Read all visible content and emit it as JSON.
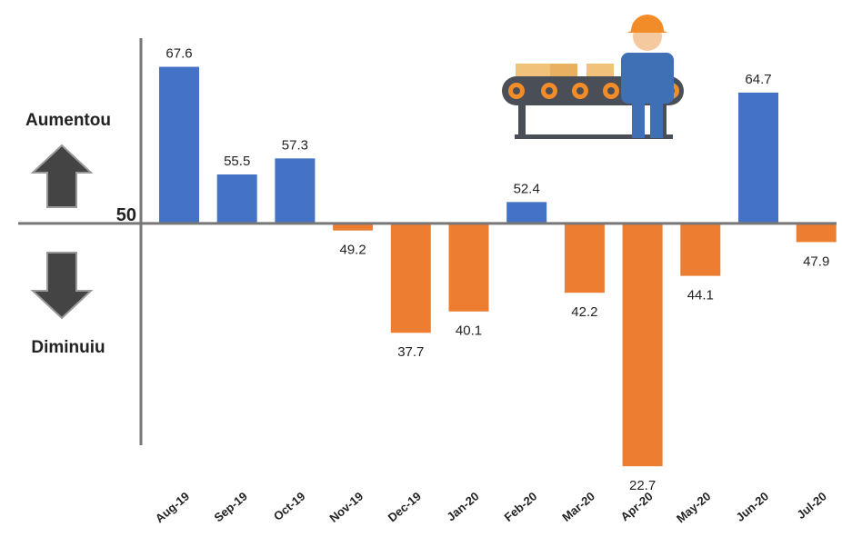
{
  "chart_data": {
    "type": "bar",
    "categories": [
      "Aug-19",
      "Sep-19",
      "Oct-19",
      "Nov-19",
      "Dec-19",
      "Jan-20",
      "Feb-20",
      "Mar-20",
      "Apr-20",
      "May-20",
      "Jun-20",
      "Jul-20"
    ],
    "values": [
      67.6,
      55.5,
      57.3,
      49.2,
      37.7,
      40.1,
      52.4,
      42.2,
      22.7,
      44.1,
      64.7,
      47.9
    ],
    "baseline": 50,
    "above_color": "#4472c4",
    "below_color": "#ed7d31",
    "ylim": [
      22,
      70
    ],
    "up_label": "Aumentou",
    "down_label": "Diminuiu"
  }
}
